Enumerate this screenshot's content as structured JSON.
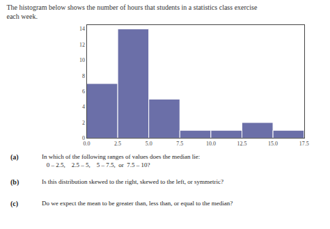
{
  "chart_data": {
    "type": "histogram",
    "title": "The histogram below shows the number of hours that students in a statistics class exercise\neach week.",
    "bins": [
      0.0,
      2.5,
      5.0,
      7.5,
      10.0,
      12.5,
      15.0,
      17.5
    ],
    "values": [
      7,
      14,
      5,
      1,
      1,
      2,
      1
    ],
    "color": "#6b6fa8",
    "xlim": [
      0.0,
      17.5
    ],
    "xticks": [
      {
        "value": 0.0,
        "label": "0.0"
      },
      2.5,
      {
        "value": 5.0,
        "label": "5.0"
      },
      7.5,
      {
        "value": 10.0,
        "label": "10.0"
      },
      12.5,
      {
        "value": 15.0,
        "label": "15.0"
      },
      17.5
    ],
    "ylim": [
      0,
      14.5
    ],
    "yticks": [
      0,
      2,
      4,
      6,
      8,
      10,
      12,
      14
    ],
    "grid": false,
    "annotations": [
      [
        "(a)",
        "In which of the following ranges of values does the median lie:",
        "   0 – 2.5,    2.5 – 5,    5 – 7.5,  or  7.5 – 10?"
      ],
      [
        "(b)",
        "Is this distribution skewed to the right, skewed to the left, or symmetric?"
      ],
      [
        "(c)",
        "Do we expect the mean to be greater than, less than, or equal to the median?"
      ]
    ]
  }
}
